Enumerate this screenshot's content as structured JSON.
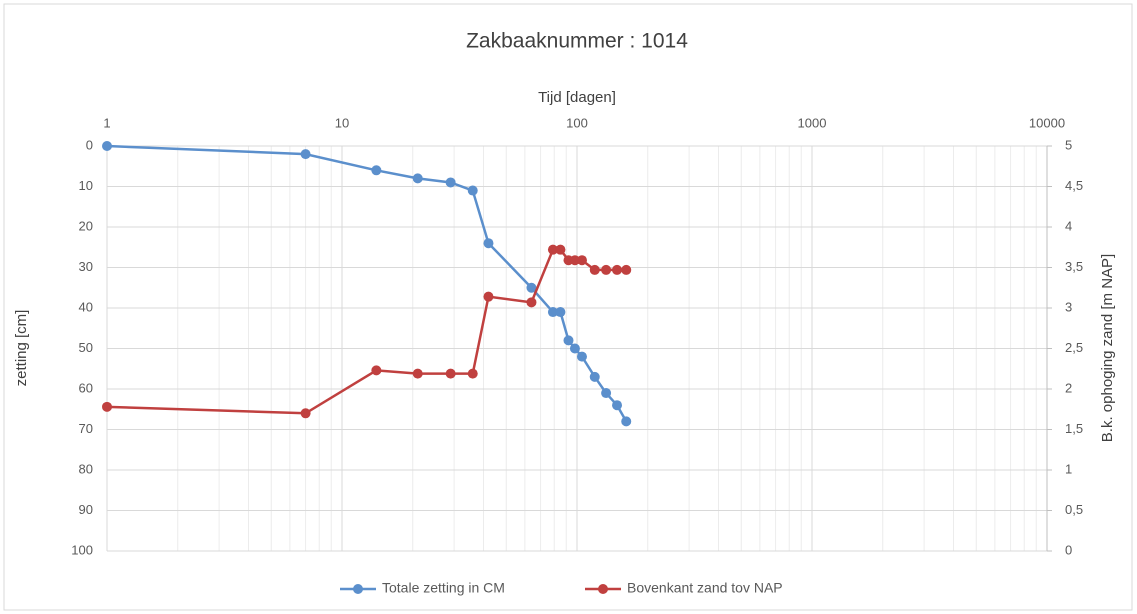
{
  "chart_data": {
    "type": "line",
    "title": "Zakbaaknummer : 1014",
    "x_label": "Tijd [dagen]",
    "y_label": "zetting [cm]",
    "y2_label": "B.k. ophoging zand [m NAP]",
    "x_log": true,
    "xlim": [
      1,
      10000
    ],
    "xticks": [
      1,
      10,
      100,
      1000,
      10000
    ],
    "ylim": [
      0,
      100
    ],
    "y_inverted": true,
    "yticks": [
      0,
      10,
      20,
      30,
      40,
      50,
      60,
      70,
      80,
      90,
      100
    ],
    "y2lim": [
      0,
      5
    ],
    "y2ticks": [
      0,
      {
        "value": 0.5,
        "label": "0,5"
      },
      1,
      {
        "value": 1.5,
        "label": "1,5"
      },
      2,
      {
        "value": 2.5,
        "label": "2,5"
      },
      3,
      {
        "value": 3.5,
        "label": "3,5"
      },
      4,
      {
        "value": 4.5,
        "label": "4,5"
      },
      5
    ],
    "grid": true,
    "legend": "bottom",
    "x": [
      1,
      7,
      14,
      21,
      29,
      36,
      42,
      64,
      79,
      85,
      92,
      98,
      105,
      119,
      133,
      148,
      162
    ],
    "series": [
      {
        "name": "Totale zetting in CM",
        "color": "#5b8fcc",
        "values": [
          0,
          2,
          6,
          8,
          9,
          11,
          24,
          35,
          41,
          41,
          48,
          50,
          52,
          57,
          61,
          64,
          68
        ]
      },
      {
        "name": "Bovenkant zand tov NAP",
        "color": "#c0403f",
        "axis": "y2",
        "values": [
          1.78,
          1.7,
          2.23,
          2.19,
          2.19,
          2.19,
          3.14,
          3.07,
          3.72,
          3.72,
          3.59,
          3.59,
          3.59,
          3.47,
          3.47,
          3.47,
          3.47
        ]
      }
    ]
  }
}
